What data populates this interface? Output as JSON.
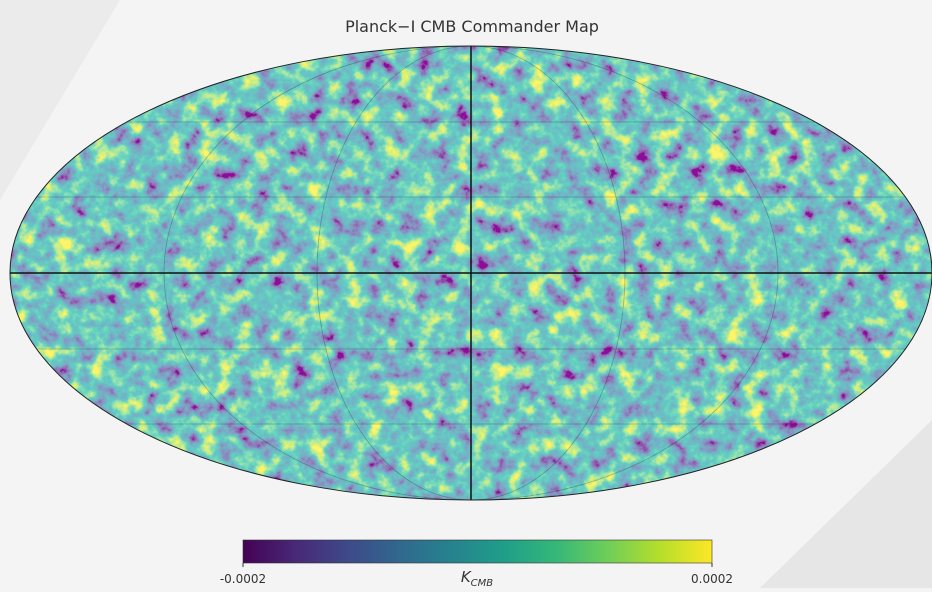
{
  "title": "Planck−I CMB Commander Map",
  "colorbar": {
    "range": [
      -0.0002,
      0.0002
    ],
    "ticks": [
      -0.0002,
      0.0002
    ],
    "unit": "K",
    "unit_subscript": "CMB",
    "colormap": [
      "#440154",
      "#482878",
      "#3e4989",
      "#31688e",
      "#26828e",
      "#1f9e89",
      "#35b779",
      "#6ece58",
      "#b5de2b",
      "#fde725"
    ]
  }
}
